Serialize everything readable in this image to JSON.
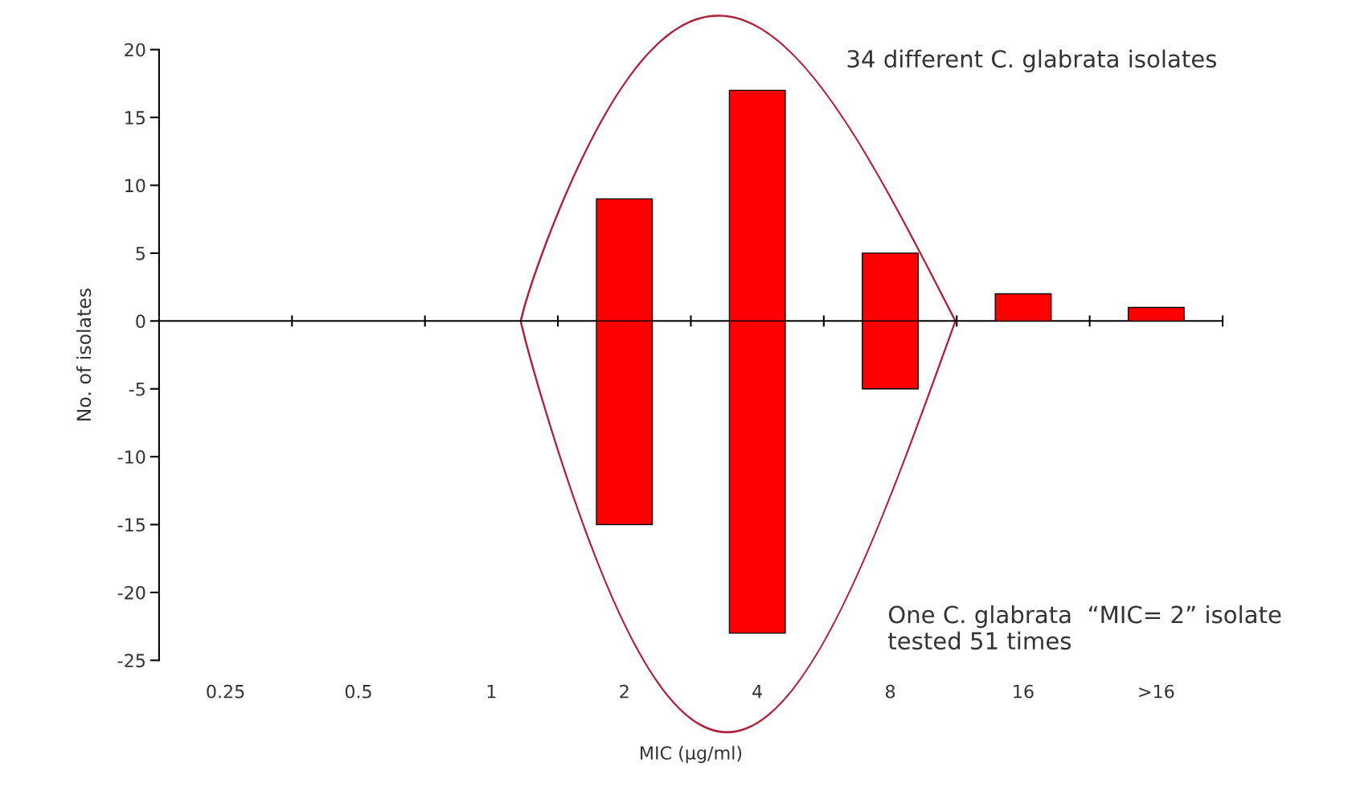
{
  "chart_data": {
    "type": "bar",
    "categories": [
      "0.25",
      "0.5",
      "1",
      "2",
      "4",
      "8",
      "16",
      ">16"
    ],
    "series": [
      {
        "color": "#ff0000",
        "values": [
          null,
          null,
          null,
          9,
          17,
          5,
          2,
          1
        ]
      },
      {
        "color": "#ff0000",
        "values": [
          null,
          null,
          null,
          -15,
          -23,
          -5,
          null,
          null
        ]
      }
    ],
    "ylim": [
      -25,
      20
    ],
    "yticks": [
      -25,
      -20,
      -15,
      -10,
      -5,
      0,
      5,
      10,
      15,
      20
    ],
    "xlabel": "MIC (µg/ml)",
    "ylabel": "No. of isolates",
    "annotations": [
      "34 different C. glabrata isolates",
      "One C. glabrata  “MIC= 2” isolate\ntested 51 times"
    ],
    "legend": false
  }
}
